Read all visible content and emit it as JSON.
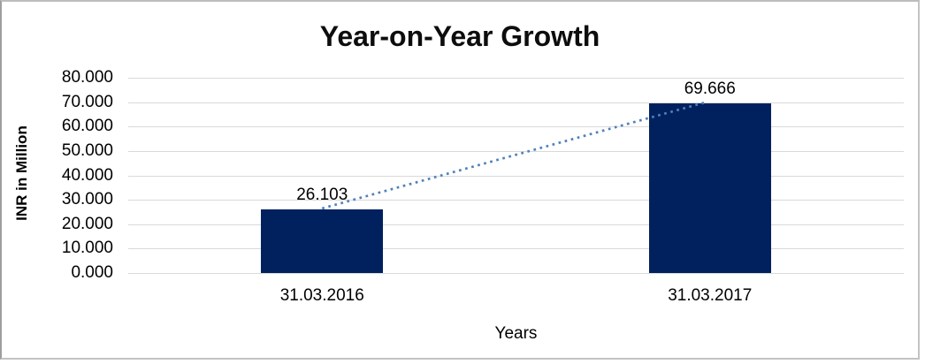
{
  "window": {
    "background": "#ffffff",
    "border_color": "#c3c3c3"
  },
  "chart_data": {
    "type": "bar",
    "title": "Year-on-Year Growth",
    "xlabel": "Years",
    "ylabel": "INR in Million",
    "categories": [
      "31.03.2016",
      "31.03.2017"
    ],
    "series": [
      {
        "name": "INR in Million",
        "values": [
          26.103,
          69.666
        ],
        "data_labels": [
          "26.103",
          "69.666"
        ],
        "bar_color": "#00215e"
      }
    ],
    "ylim": [
      0,
      80
    ],
    "ytick_step": 10,
    "ytick_labels": [
      "0.000",
      "10.000",
      "20.000",
      "30.000",
      "40.000",
      "50.000",
      "60.000",
      "70.000",
      "80.000"
    ],
    "grid": "horizontal",
    "gridline_color": "#d9d9d9",
    "legend": "none",
    "trendline": {
      "style": "dotted",
      "color": "#4f81bd",
      "connects": [
        "top of 31.03.2016 bar",
        "top of 31.03.2017 bar"
      ]
    },
    "text_color": "#000000"
  }
}
